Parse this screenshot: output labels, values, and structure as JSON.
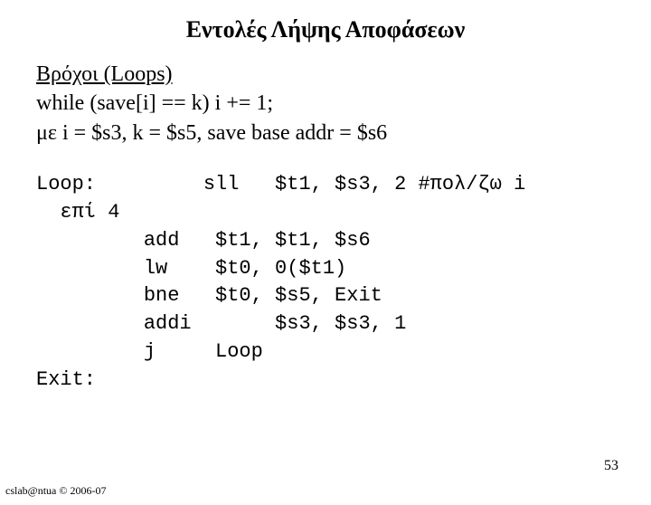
{
  "title": "Εντολές Λήψης Αποφάσεων",
  "section_heading": "Βρόχοι (Loops)",
  "line1": "while (save[i] == k) i += 1;",
  "line2": "με i = $s3, k = $s5, save base addr = $s6",
  "code": "Loop:         sll   $t1, $s3, 2 #πολ/ζω i\n  επί 4\n         add   $t1, $t1, $s6\n         lw    $t0, 0($t1)\n         bne   $t0, $s5, Exit\n         addi       $s3, $s3, 1\n         j     Loop\nExit:",
  "page_number": "53",
  "footer": "cslab@ntua © 2006-07",
  "colors": {
    "background": "#ffffff",
    "text": "#000000"
  },
  "typography": {
    "title_fontsize": 26,
    "body_fontsize": 24,
    "code_fontsize": 22,
    "pagenum_fontsize": 16,
    "footer_fontsize": 12,
    "body_font": "Times New Roman",
    "code_font": "Courier New"
  }
}
